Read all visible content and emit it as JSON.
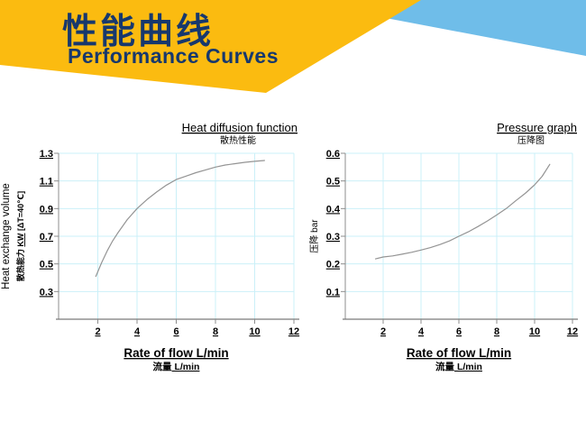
{
  "colors": {
    "banner-yellow": "#FBBB10",
    "banner-blue": "#6FBDE9",
    "title-navy": "#17386D",
    "grid": "#CBF0F8",
    "axis": "#8C8C8C",
    "baseline": "#7A7A7A",
    "curve": "#949494",
    "text": "#000000"
  },
  "header": {
    "title_zh": "性能曲线",
    "title_en": "Performance Curves"
  },
  "chart_data": [
    {
      "type": "line",
      "title": "Heat diffusion function",
      "subtitle": "散热性能",
      "xlabel": "Rate of flow L/min",
      "xlabel_zh": {
        "prefix": "流量",
        "underline": " L/min"
      },
      "ylabel_lines": [
        {
          "prefix": "Heat exchange volume",
          "underline": "",
          "suffix": ""
        },
        {
          "prefix": "散热能力 ",
          "underline": "KW",
          "suffix": " [ΔT=40℃]"
        }
      ],
      "xlim": [
        0,
        12
      ],
      "ylim": [
        0.1,
        1.3
      ],
      "xticks": [
        2,
        4,
        6,
        8,
        10,
        12
      ],
      "yticks": [
        1.3,
        1.1,
        0.9,
        0.7,
        0.5,
        0.3
      ],
      "grid": true,
      "legend": null,
      "series": [
        {
          "name": "heat-exchange-curve",
          "points": [
            [
              1.9,
              0.41
            ],
            [
              2.2,
              0.51
            ],
            [
              2.5,
              0.6
            ],
            [
              2.75,
              0.665
            ],
            [
              3,
              0.72
            ],
            [
              3.5,
              0.82
            ],
            [
              4,
              0.9
            ],
            [
              4.5,
              0.965
            ],
            [
              5,
              1.02
            ],
            [
              5.5,
              1.07
            ],
            [
              6,
              1.11
            ],
            [
              6.5,
              1.135
            ],
            [
              7,
              1.16
            ],
            [
              7.5,
              1.18
            ],
            [
              8,
              1.2
            ],
            [
              8.5,
              1.215
            ],
            [
              9,
              1.225
            ],
            [
              9.5,
              1.235
            ],
            [
              10,
              1.242
            ],
            [
              10.5,
              1.248
            ]
          ]
        }
      ]
    },
    {
      "type": "line",
      "title": "Pressure graph",
      "subtitle": "压降图",
      "xlabel": "Rate of flow L/min",
      "xlabel_zh": {
        "prefix": "流量",
        "underline": " L/min"
      },
      "ylabel_lines": [
        {
          "prefix": "压降 bar",
          "underline": "",
          "suffix": ""
        }
      ],
      "xlim": [
        0,
        12
      ],
      "ylim": [
        0,
        0.6
      ],
      "xticks": [
        2,
        4,
        6,
        8,
        10,
        12
      ],
      "yticks": [
        0.6,
        0.5,
        0.4,
        0.3,
        0.2,
        0.1
      ],
      "grid": true,
      "legend": null,
      "series": [
        {
          "name": "pressure-drop-curve",
          "points": [
            [
              1.6,
              0.218
            ],
            [
              2,
              0.225
            ],
            [
              2.5,
              0.229
            ],
            [
              3,
              0.235
            ],
            [
              3.5,
              0.242
            ],
            [
              4,
              0.25
            ],
            [
              4.5,
              0.259
            ],
            [
              5,
              0.27
            ],
            [
              5.5,
              0.283
            ],
            [
              6,
              0.3
            ],
            [
              6.5,
              0.316
            ],
            [
              7,
              0.335
            ],
            [
              7.5,
              0.355
            ],
            [
              8,
              0.377
            ],
            [
              8.5,
              0.4
            ],
            [
              9,
              0.428
            ],
            [
              9.5,
              0.455
            ],
            [
              10,
              0.486
            ],
            [
              10.4,
              0.517
            ],
            [
              10.8,
              0.56
            ]
          ]
        }
      ]
    }
  ]
}
